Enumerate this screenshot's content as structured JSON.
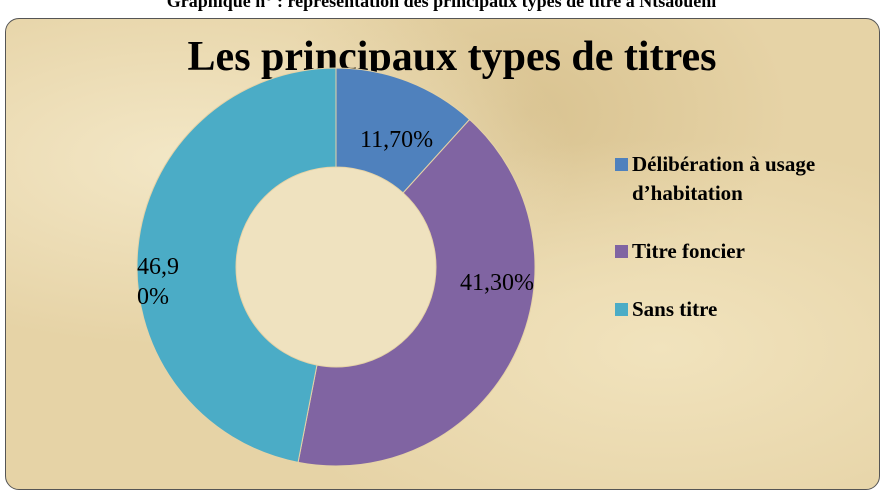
{
  "caption": "Graphique n° : représentation des principaux types de titre à Ntsaouéni",
  "chart_data": {
    "type": "donut",
    "title": "Les principaux types de titres",
    "categories": [
      "Délibération à usage d’habitation",
      "Titre foncier",
      "Sans titre"
    ],
    "values": [
      11.7,
      41.3,
      46.9
    ],
    "value_labels": [
      "11,70%",
      "41,30%",
      "46,90%"
    ],
    "colors": [
      "#4f81bd",
      "#8064a2",
      "#4bacc6"
    ],
    "legend": "right"
  }
}
